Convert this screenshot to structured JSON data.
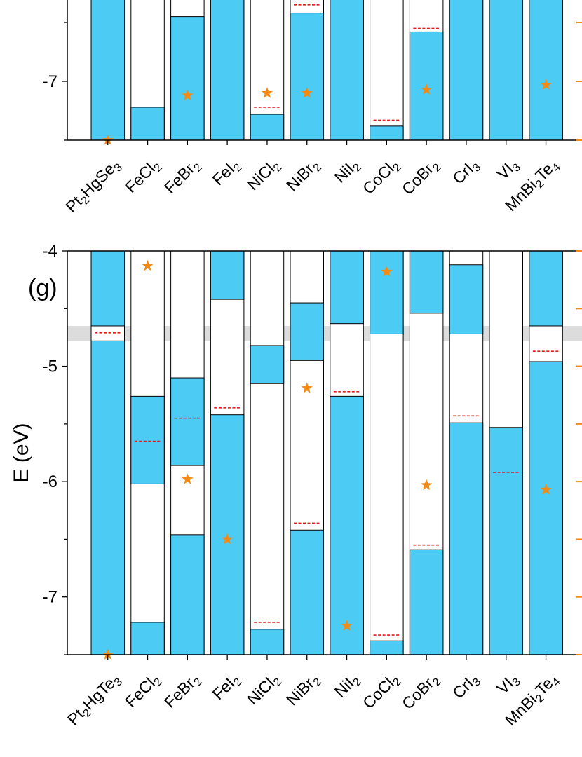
{
  "chart_data": [
    {
      "type": "bar",
      "panel": "upper (partial, cropped at top)",
      "ylabel": "",
      "ylim": [
        -7.5,
        -6.0
      ],
      "yticks": [
        "-7"
      ],
      "categories": [
        {
          "base": "Pt",
          "sub1": "2",
          "mid": "HgSe",
          "sub2": "3"
        },
        {
          "base": "FeCl",
          "sub1": "2"
        },
        {
          "base": "FeBr",
          "sub1": "2"
        },
        {
          "base": "FeI",
          "sub1": "2"
        },
        {
          "base": "NiCl",
          "sub1": "2"
        },
        {
          "base": "NiBr",
          "sub1": "2"
        },
        {
          "base": "NiI",
          "sub1": "2"
        },
        {
          "base": "CoCl",
          "sub1": "2"
        },
        {
          "base": "CoBr",
          "sub1": "2"
        },
        {
          "base": "CrI",
          "sub1": "3"
        },
        {
          "base": "VI",
          "sub1": "3"
        },
        {
          "base": "MnBi",
          "sub1": "2",
          "mid": "Te",
          "sub2": "4"
        }
      ],
      "band_segments": [
        [
          [
            -7.5,
            -6.0
          ]
        ],
        [
          [
            -7.5,
            -7.22
          ]
        ],
        [
          [
            -7.5,
            -6.45
          ]
        ],
        [
          [
            -7.5,
            -6.0
          ]
        ],
        [
          [
            -7.5,
            -7.28
          ]
        ],
        [
          [
            -7.5,
            -6.42
          ]
        ],
        [
          [
            -7.5,
            -6.0
          ]
        ],
        [
          [
            -7.5,
            -7.38
          ]
        ],
        [
          [
            -7.5,
            -6.58
          ]
        ],
        [
          [
            -7.5,
            -6.0
          ]
        ],
        [
          [
            -7.5,
            -6.0
          ]
        ],
        [
          [
            -7.5,
            -6.0
          ]
        ]
      ],
      "fermi_dashes": [
        null,
        null,
        null,
        null,
        -7.22,
        -6.35,
        null,
        -7.33,
        -6.55,
        null,
        null,
        null
      ],
      "stars": [
        -7.5,
        null,
        -7.12,
        null,
        -7.1,
        -7.1,
        null,
        null,
        -7.07,
        null,
        null,
        -7.03
      ]
    },
    {
      "type": "bar",
      "panel": "(g)",
      "ylabel": "E (eV)",
      "ylim": [
        -7.5,
        -4.0
      ],
      "yticks": [
        "-4",
        "-5",
        "-6",
        "-7"
      ],
      "gray_band": [
        -4.78,
        -4.65
      ],
      "categories": [
        {
          "base": "Pt",
          "sub1": "2",
          "mid": "HgTe",
          "sub2": "3"
        },
        {
          "base": "FeCl",
          "sub1": "2"
        },
        {
          "base": "FeBr",
          "sub1": "2"
        },
        {
          "base": "FeI",
          "sub1": "2"
        },
        {
          "base": "NiCl",
          "sub1": "2"
        },
        {
          "base": "NiBr",
          "sub1": "2"
        },
        {
          "base": "NiI",
          "sub1": "2"
        },
        {
          "base": "CoCl",
          "sub1": "2"
        },
        {
          "base": "CoBr",
          "sub1": "2"
        },
        {
          "base": "CrI",
          "sub1": "3"
        },
        {
          "base": "VI",
          "sub1": "3"
        },
        {
          "base": "MnBi",
          "sub1": "2",
          "mid": "Te",
          "sub2": "4"
        }
      ],
      "band_segments": [
        [
          [
            -7.5,
            -4.78
          ],
          [
            -4.65,
            -4.0
          ]
        ],
        [
          [
            -7.5,
            -7.22
          ],
          [
            -6.02,
            -5.26
          ]
        ],
        [
          [
            -7.5,
            -6.46
          ],
          [
            -5.86,
            -5.1
          ]
        ],
        [
          [
            -7.5,
            -5.42
          ],
          [
            -4.42,
            -4.0
          ]
        ],
        [
          [
            -7.5,
            -7.28
          ],
          [
            -5.15,
            -4.82
          ]
        ],
        [
          [
            -7.5,
            -6.42
          ],
          [
            -4.95,
            -4.45
          ]
        ],
        [
          [
            -7.5,
            -5.26
          ],
          [
            -4.63,
            -4.0
          ]
        ],
        [
          [
            -7.5,
            -7.38
          ],
          [
            -4.72,
            -4.0
          ]
        ],
        [
          [
            -7.5,
            -6.59
          ],
          [
            -4.54,
            -4.0
          ]
        ],
        [
          [
            -7.5,
            -5.49
          ],
          [
            -4.72,
            -4.12
          ]
        ],
        [
          [
            -7.5,
            -5.53
          ]
        ],
        [
          [
            -7.5,
            -4.96
          ],
          [
            -4.65,
            -4.0
          ]
        ]
      ],
      "fermi_dashes": [
        -4.71,
        -5.65,
        -5.45,
        -5.36,
        -7.22,
        -6.36,
        -5.22,
        -7.33,
        -6.55,
        -5.43,
        -5.92,
        -4.87
      ],
      "stars": [
        -7.5,
        -4.13,
        -5.98,
        -6.5,
        null,
        -5.19,
        -7.25,
        -4.18,
        -6.03,
        null,
        null,
        -6.07
      ]
    }
  ],
  "colors": {
    "band_fill": "#4ccbf5",
    "fermi_dash": "#e21b1b",
    "star": "#f28a13",
    "gray_band": "#d0d0d0",
    "right_ticks": "#f28a13"
  }
}
